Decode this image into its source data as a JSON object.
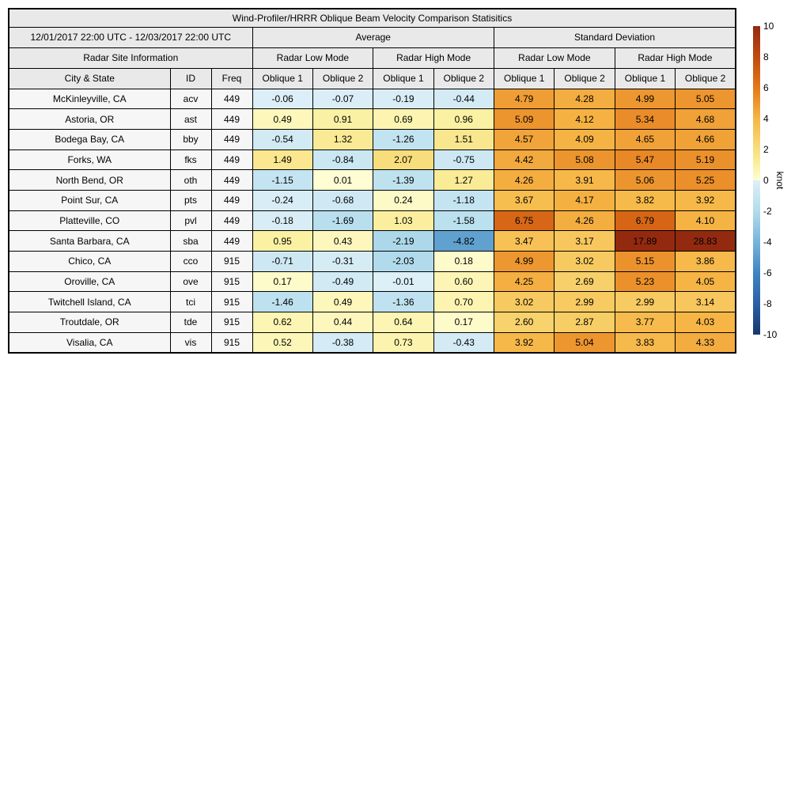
{
  "table": {
    "title": "Wind-Profiler/HRRR Oblique Beam Velocity Comparison Statisitics",
    "date_range": "12/01/2017 22:00 UTC - 12/03/2017 22:00 UTC",
    "sections": [
      "Average",
      "Standard Deviation"
    ],
    "site_info_label": "Radar Site Information",
    "mode_headers": [
      "Radar Low Mode",
      "Radar High Mode",
      "Radar Low Mode",
      "Radar High Mode"
    ],
    "column_headers": [
      "City & State",
      "ID",
      "Freq",
      "Oblique 1",
      "Oblique 2",
      "Oblique 1",
      "Oblique 2",
      "Oblique 1",
      "Oblique 2",
      "Oblique 1",
      "Oblique 2"
    ]
  },
  "chart_data": {
    "type": "heatmap",
    "title": "Wind-Profiler/HRRR Oblique Beam Velocity Comparison Statisitics",
    "unit": "knot",
    "value_range": [
      -10,
      10
    ],
    "colorbar_ticks": [
      10,
      8,
      6,
      4,
      2,
      0,
      -2,
      -4,
      -6,
      -8,
      -10
    ],
    "value_columns": [
      "avg_low_oblique1",
      "avg_low_oblique2",
      "avg_high_oblique1",
      "avg_high_oblique2",
      "std_low_oblique1",
      "std_low_oblique2",
      "std_high_oblique1",
      "std_high_oblique2"
    ],
    "rows": [
      {
        "city_state": "McKinleyville, CA",
        "id": "acv",
        "freq": "449",
        "values": [
          -0.06,
          -0.07,
          -0.19,
          -0.44,
          4.79,
          4.28,
          4.99,
          5.05
        ]
      },
      {
        "city_state": "Astoria, OR",
        "id": "ast",
        "freq": "449",
        "values": [
          0.49,
          0.91,
          0.69,
          0.96,
          5.09,
          4.12,
          5.34,
          4.68
        ]
      },
      {
        "city_state": "Bodega Bay, CA",
        "id": "bby",
        "freq": "449",
        "values": [
          -0.54,
          1.32,
          -1.26,
          1.51,
          4.57,
          4.09,
          4.65,
          4.66
        ]
      },
      {
        "city_state": "Forks, WA",
        "id": "fks",
        "freq": "449",
        "values": [
          1.49,
          -0.84,
          2.07,
          -0.75,
          4.42,
          5.08,
          5.47,
          5.19
        ]
      },
      {
        "city_state": "North Bend, OR",
        "id": "oth",
        "freq": "449",
        "values": [
          -1.15,
          0.01,
          -1.39,
          1.27,
          4.26,
          3.91,
          5.06,
          5.25
        ]
      },
      {
        "city_state": "Point Sur, CA",
        "id": "pts",
        "freq": "449",
        "values": [
          -0.24,
          -0.68,
          0.24,
          -1.18,
          3.67,
          4.17,
          3.82,
          3.92
        ]
      },
      {
        "city_state": "Platteville, CO",
        "id": "pvl",
        "freq": "449",
        "values": [
          -0.18,
          -1.69,
          1.03,
          -1.58,
          6.75,
          4.26,
          6.79,
          4.1
        ]
      },
      {
        "city_state": "Santa Barbara, CA",
        "id": "sba",
        "freq": "449",
        "values": [
          0.95,
          0.43,
          -2.19,
          -4.82,
          3.47,
          3.17,
          17.89,
          28.83
        ]
      },
      {
        "city_state": "Chico, CA",
        "id": "cco",
        "freq": "915",
        "values": [
          -0.71,
          -0.31,
          -2.03,
          0.18,
          4.99,
          3.02,
          5.15,
          3.86
        ]
      },
      {
        "city_state": "Oroville, CA",
        "id": "ove",
        "freq": "915",
        "values": [
          0.17,
          -0.49,
          -0.01,
          0.6,
          4.25,
          2.69,
          5.23,
          4.05
        ]
      },
      {
        "city_state": "Twitchell Island, CA",
        "id": "tci",
        "freq": "915",
        "values": [
          -1.46,
          0.49,
          -1.36,
          0.7,
          3.02,
          2.99,
          2.99,
          3.14
        ]
      },
      {
        "city_state": "Troutdale, OR",
        "id": "tde",
        "freq": "915",
        "values": [
          0.62,
          0.44,
          0.64,
          0.17,
          2.6,
          2.87,
          3.77,
          4.03
        ]
      },
      {
        "city_state": "Visalia, CA",
        "id": "vis",
        "freq": "915",
        "values": [
          0.52,
          -0.38,
          0.73,
          -0.43,
          3.92,
          5.04,
          3.83,
          4.33
        ]
      }
    ],
    "colormap": {
      "positive_anchors": [
        [
          0,
          "#fffdd4"
        ],
        [
          1,
          "#fbf0a0"
        ],
        [
          2,
          "#f8de7e"
        ],
        [
          4,
          "#f6b646"
        ],
        [
          6,
          "#e4781a"
        ],
        [
          8,
          "#c14a10"
        ],
        [
          10,
          "#932a10"
        ]
      ],
      "negative_anchors": [
        [
          0,
          "#ddeff7"
        ],
        [
          -2,
          "#b2dcec"
        ],
        [
          -4,
          "#77b5da"
        ],
        [
          -6,
          "#3e85c0"
        ],
        [
          -8,
          "#2b60a6"
        ],
        [
          -10,
          "#16386c"
        ]
      ]
    },
    "layout": {
      "legend_position": "right",
      "grid": false
    }
  },
  "colorbar": {
    "unit_label": "knot"
  }
}
